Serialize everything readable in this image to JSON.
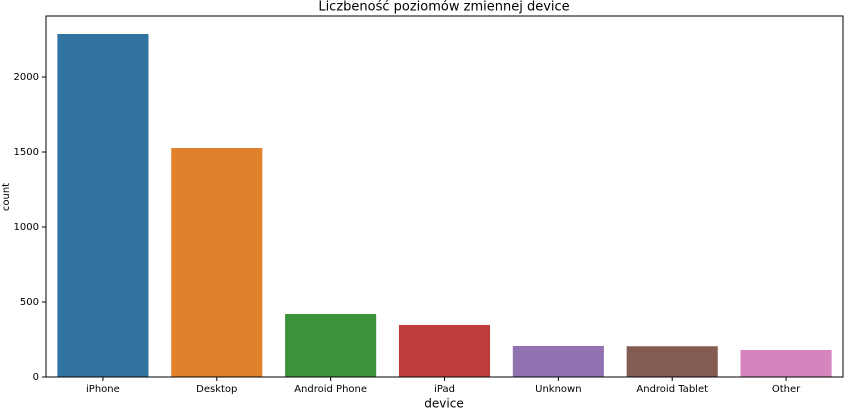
{
  "chart_data": {
    "type": "bar",
    "title": "Liczbeność poziomów zmiennej device",
    "xlabel": "device",
    "ylabel": "count",
    "categories": [
      "iPhone",
      "Desktop",
      "Android Phone",
      "iPad",
      "Unknown",
      "Android Tablet",
      "Other"
    ],
    "values": [
      2287,
      1527,
      420,
      347,
      207,
      205,
      180
    ],
    "colors": [
      "#3274a1",
      "#e1812c",
      "#3a923a",
      "#c03d3e",
      "#9372b2",
      "#845b53",
      "#d684bd"
    ],
    "ylim": [
      0,
      2407
    ],
    "yticks": [
      0,
      500,
      1000,
      1500,
      2000
    ],
    "grid": false
  }
}
